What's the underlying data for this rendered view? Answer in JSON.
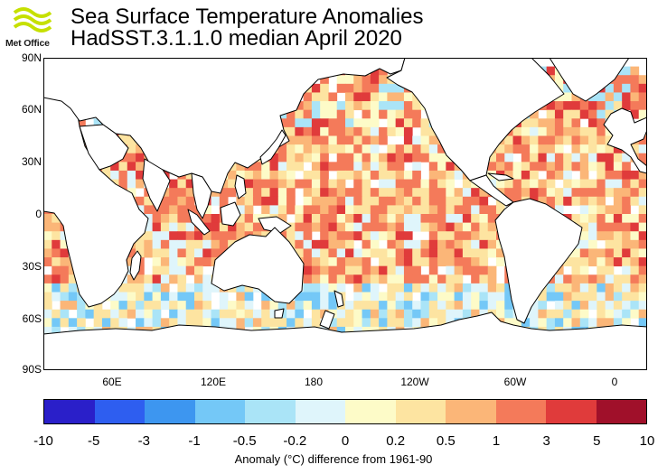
{
  "header": {
    "logo_text": "Met Office",
    "title": "Sea Surface Temperature Anomalies",
    "subtitle": "HadSST.3.1.1.0 median April 2020"
  },
  "map": {
    "lat_labels": [
      "90N",
      "60N",
      "30N",
      "0",
      "30S",
      "60S",
      "90S"
    ],
    "lon_labels": [
      "60E",
      "120E",
      "180",
      "120W",
      "60W",
      "0"
    ],
    "missing_color": "#ffffff",
    "land_color": "#ffffff",
    "coast_color": "#000000"
  },
  "colorbar": {
    "ticks": [
      "-10",
      "-5",
      "-3",
      "-1",
      "-0.5",
      "-0.2",
      "0",
      "0.2",
      "0.5",
      "1",
      "3",
      "5",
      "10"
    ],
    "colors": [
      "#2a1fc9",
      "#2e5ef0",
      "#3d96f0",
      "#74c8f7",
      "#aae4f7",
      "#dff5fb",
      "#fdfbc8",
      "#fde4a1",
      "#fbb678",
      "#f47a5a",
      "#e03b3b",
      "#a0102a"
    ],
    "title": "Anomaly (°C) difference from 1961-90"
  }
}
